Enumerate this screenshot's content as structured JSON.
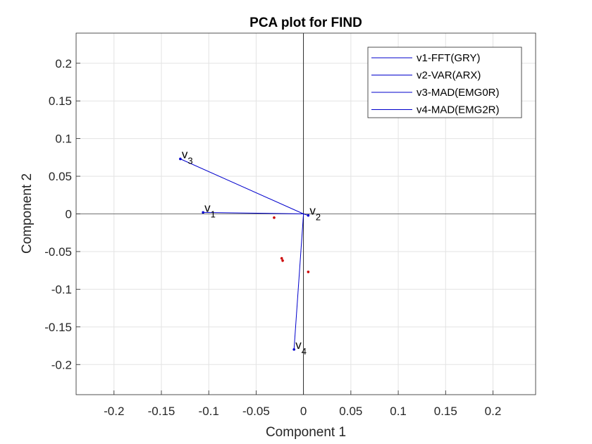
{
  "chart_data": {
    "type": "scatter",
    "title": "PCA plot for FIND",
    "xlabel": "Component 1",
    "ylabel": "Component 2",
    "xlim": [
      -0.24,
      0.245
    ],
    "ylim": [
      -0.24,
      0.24
    ],
    "xticks": [
      -0.2,
      -0.15,
      -0.1,
      -0.05,
      0,
      0.05,
      0.1,
      0.15,
      0.2
    ],
    "xtick_labels": [
      "-0.2",
      "-0.15",
      "-0.1",
      "-0.05",
      "0",
      "0.05",
      "0.1",
      "0.15",
      "0.2"
    ],
    "yticks": [
      0.2,
      0.15,
      0.1,
      0.05,
      0,
      -0.05,
      -0.1,
      -0.15,
      -0.2
    ],
    "ytick_labels": [
      "0.2",
      "0.15",
      "0.1",
      "0.05",
      "0",
      "-0.05",
      "-0.1",
      "-0.15",
      "-0.2"
    ],
    "grid": true,
    "legend_position": "top-right",
    "colors": {
      "vectors": "#0000cc",
      "observations": "#cc0000",
      "zero_lines": "#000000",
      "grid": "#e3e3e3"
    },
    "vectors": [
      {
        "name": "v1-FFT(GRY)",
        "label": "v",
        "subscript": "1",
        "x": -0.106,
        "y": 0.002
      },
      {
        "name": "v2-VAR(ARX)",
        "label": "v",
        "subscript": "2",
        "x": 0.005,
        "y": -0.002
      },
      {
        "name": "v3-MAD(EMG0R)",
        "label": "v",
        "subscript": "3",
        "x": -0.13,
        "y": 0.073
      },
      {
        "name": "v4-MAD(EMG2R)",
        "label": "v",
        "subscript": "4",
        "x": -0.01,
        "y": -0.18
      }
    ],
    "observations": [
      {
        "x": -0.031,
        "y": -0.005
      },
      {
        "x": -0.023,
        "y": -0.059
      },
      {
        "x": -0.022,
        "y": -0.062
      },
      {
        "x": 0.005,
        "y": -0.077
      }
    ]
  }
}
